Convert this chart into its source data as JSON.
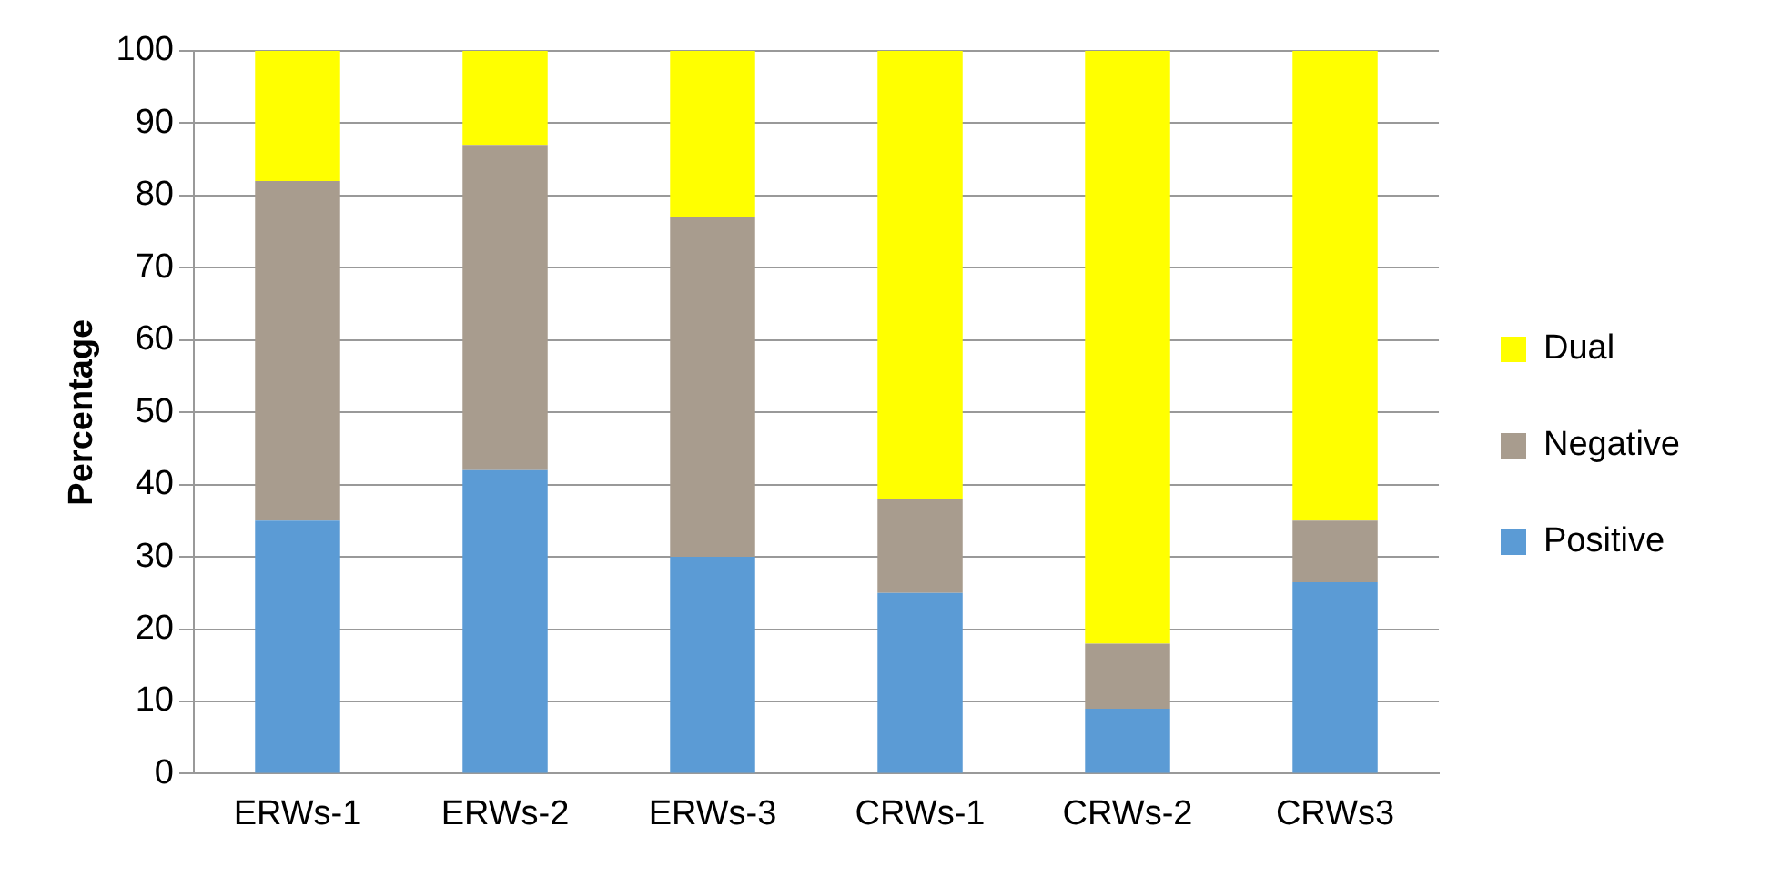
{
  "chart_data": {
    "type": "bar",
    "stacked": true,
    "ylabel": "Percentage",
    "categories": [
      "ERWs-1",
      "ERWs-2",
      "ERWs-3",
      "CRWs-1",
      "CRWs-2",
      "CRWs3"
    ],
    "series": [
      {
        "name": "Positive",
        "color": "#5b9bd5",
        "values": [
          35,
          42,
          30,
          25,
          9,
          26.5
        ]
      },
      {
        "name": "Negative",
        "color": "#a89c8e",
        "values": [
          47,
          45,
          47,
          13,
          9,
          8.5
        ]
      },
      {
        "name": "Dual",
        "color": "#ffff00",
        "values": [
          18,
          13,
          23,
          62,
          82,
          65
        ]
      }
    ],
    "ylim": [
      0,
      100
    ],
    "yticks": [
      0,
      10,
      20,
      30,
      40,
      50,
      60,
      70,
      80,
      90,
      100
    ],
    "grid": "y",
    "legend": "right"
  }
}
